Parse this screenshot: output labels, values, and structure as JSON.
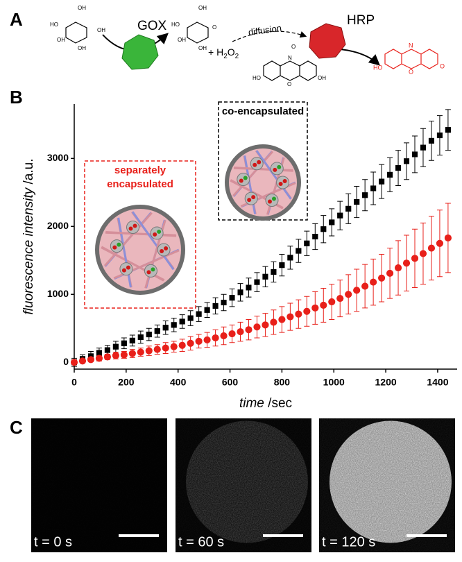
{
  "panel_labels": [
    "A",
    "B",
    "C"
  ],
  "scheme": {
    "enzyme_1": "GOX",
    "enzyme_2": "HRP",
    "arrow_label": "diffusion",
    "peroxide": [
      "+ H",
      "2",
      "O",
      "2"
    ],
    "glucose_labels": [
      "OH",
      "HO",
      "OH",
      "OH",
      "OH"
    ],
    "gluconolactone_labels": [
      "OH",
      "HO",
      "OH",
      "OH",
      "O"
    ],
    "amplex_labels": [
      "O",
      "N",
      "HO",
      "O",
      "OH"
    ],
    "resorufin_labels": [
      "N",
      "HO",
      "O",
      "O"
    ]
  },
  "chart_data": {
    "type": "errorbar-scatter",
    "x_label": [
      "time",
      " /sec"
    ],
    "y_label": [
      "fluorescence intensity",
      " /a.u."
    ],
    "x": [
      0,
      32,
      64,
      96,
      128,
      160,
      192,
      224,
      256,
      288,
      320,
      352,
      384,
      416,
      448,
      480,
      512,
      544,
      576,
      608,
      640,
      672,
      704,
      736,
      768,
      800,
      832,
      864,
      896,
      928,
      960,
      992,
      1024,
      1056,
      1088,
      1120,
      1152,
      1184,
      1216,
      1248,
      1280,
      1312,
      1344,
      1376,
      1408,
      1440
    ],
    "xlim": [
      0,
      1475
    ],
    "xticks": [
      0,
      200,
      400,
      600,
      800,
      1000,
      1200,
      1400
    ],
    "ylim": [
      -100,
      3800
    ],
    "yticks": [
      0,
      1000,
      2000,
      3000
    ],
    "series": [
      {
        "color": "#000000",
        "marker": "square",
        "values": [
          0,
          50,
          90,
          140,
          180,
          230,
          280,
          320,
          370,
          410,
          460,
          510,
          550,
          600,
          650,
          710,
          770,
          830,
          880,
          950,
          1030,
          1100,
          1180,
          1260,
          1330,
          1430,
          1540,
          1640,
          1750,
          1850,
          1960,
          2060,
          2160,
          2260,
          2360,
          2460,
          2560,
          2660,
          2760,
          2860,
          2960,
          3060,
          3160,
          3260,
          3340,
          3420
        ],
        "errors": [
          60,
          60,
          70,
          70,
          70,
          80,
          80,
          80,
          90,
          90,
          90,
          100,
          100,
          100,
          110,
          110,
          110,
          120,
          120,
          130,
          130,
          140,
          140,
          150,
          150,
          160,
          170,
          170,
          180,
          190,
          200,
          200,
          210,
          220,
          230,
          230,
          240,
          250,
          250,
          260,
          270,
          270,
          280,
          290,
          290,
          300
        ]
      },
      {
        "color": "#e8201a",
        "marker": "circle",
        "values": [
          0,
          20,
          40,
          60,
          80,
          100,
          110,
          130,
          150,
          170,
          190,
          210,
          230,
          250,
          280,
          310,
          330,
          360,
          390,
          420,
          450,
          480,
          520,
          550,
          590,
          630,
          670,
          710,
          750,
          800,
          840,
          890,
          940,
          1000,
          1060,
          1120,
          1180,
          1240,
          1310,
          1390,
          1460,
          1530,
          1600,
          1680,
          1750,
          1830
        ],
        "errors": [
          20,
          30,
          30,
          40,
          40,
          50,
          50,
          60,
          60,
          70,
          70,
          80,
          80,
          90,
          100,
          100,
          110,
          120,
          130,
          130,
          140,
          150,
          160,
          170,
          180,
          190,
          200,
          210,
          220,
          240,
          250,
          260,
          270,
          290,
          310,
          320,
          340,
          350,
          370,
          400,
          410,
          430,
          450,
          470,
          490,
          510
        ]
      }
    ],
    "annotations": [
      {
        "text": [
          "separately",
          "encapsulated"
        ],
        "color": "#e8201a"
      },
      {
        "text": [
          "co-encapsulated"
        ],
        "color": "#000000"
      }
    ]
  },
  "micrographs": [
    {
      "label": "t = 0 s",
      "brightness": 0
    },
    {
      "label": "t = 60 s",
      "brightness": 1
    },
    {
      "label": "t = 120 s",
      "brightness": 2
    }
  ]
}
